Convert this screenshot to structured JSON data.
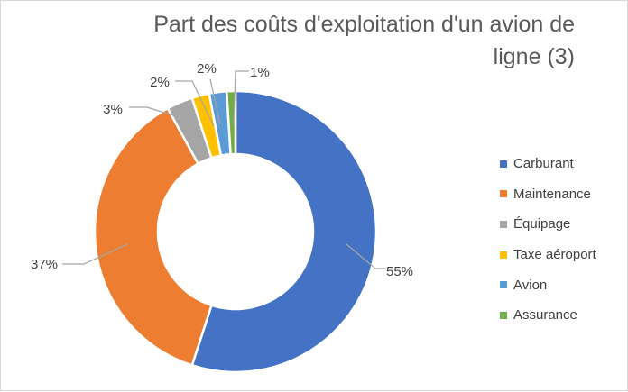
{
  "chart_data": {
    "type": "pie",
    "donut": true,
    "title_lines": [
      "Part des coûts d'exploitation d'un avion de",
      "ligne (3)"
    ],
    "categories": [
      "Carburant",
      "Maintenance",
      "Équipage",
      "Taxe aéroport",
      "Avion",
      "Assurance"
    ],
    "values": [
      55,
      37,
      3,
      2,
      2,
      1
    ],
    "data_labels": [
      "55%",
      "37%",
      "3%",
      "2%",
      "2%",
      "1%"
    ],
    "colors": [
      "#4472C4",
      "#ED7D31",
      "#A5A5A5",
      "#FFC000",
      "#5B9BD5",
      "#70AD47"
    ],
    "legend_position": "right"
  }
}
